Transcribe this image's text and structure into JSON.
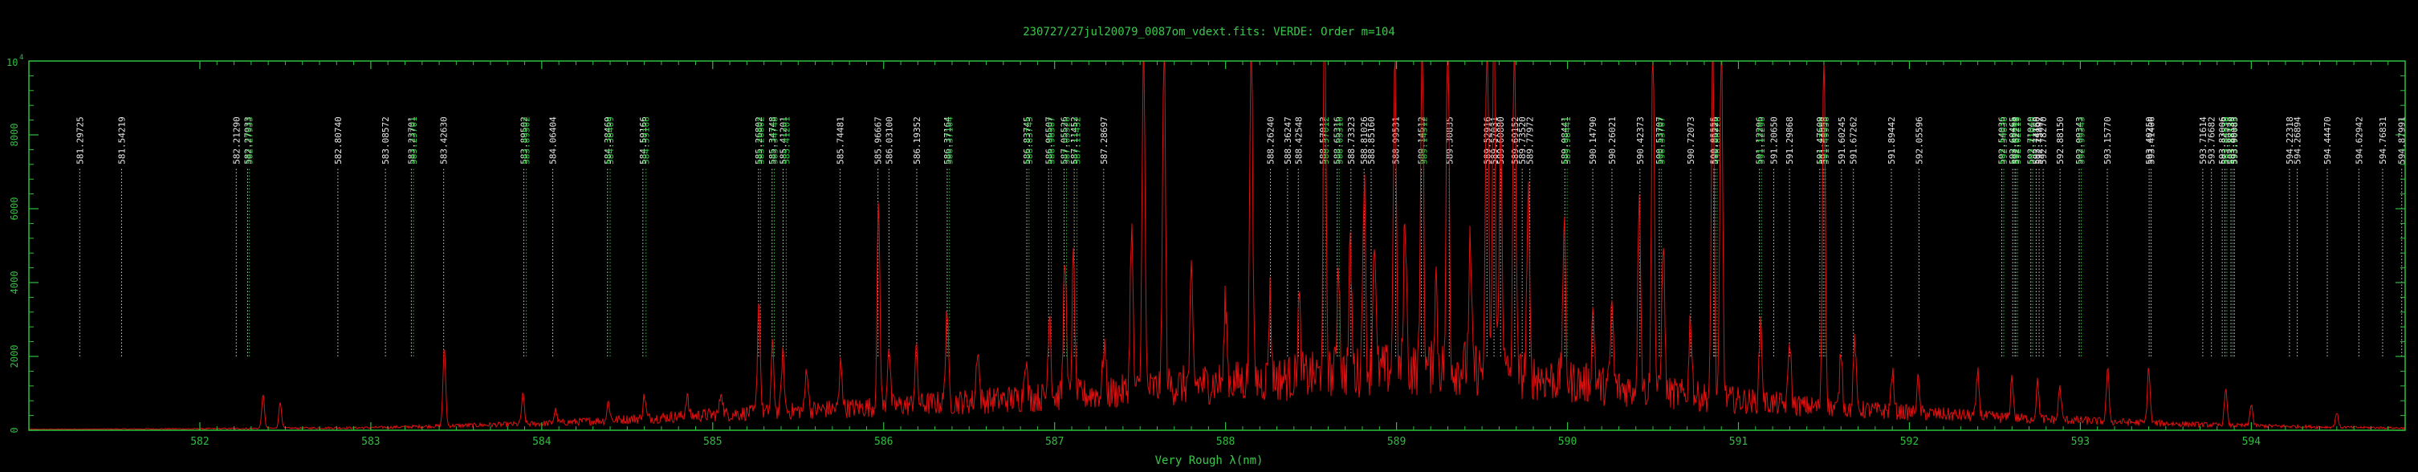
{
  "chart_data": {
    "type": "line",
    "title": "230727/27jul20079_0087om_vdext.fits: VERDE: Order m=104",
    "xlabel": "Very Rough λ(nm)",
    "ylabel": "",
    "xlim": [
      581.0,
      594.9
    ],
    "ylim": [
      0,
      10000
    ],
    "y_exponent_label": "10",
    "y_exponent_power": "4",
    "x_ticks": [
      582,
      583,
      584,
      585,
      586,
      587,
      588,
      589,
      590,
      591,
      592,
      593,
      594
    ],
    "y_ticks": [
      0,
      2000,
      4000,
      6000,
      8000
    ],
    "grid": false,
    "colors": {
      "frame": "#2fbf3f",
      "spectrum": "#e01010",
      "line_white": "#e8e8e8",
      "line_green": "#2fd03f"
    },
    "reference_lines": [
      {
        "label": "581.29725",
        "x": 581.29725,
        "c": "w"
      },
      {
        "label": "581.54219",
        "x": 581.54219,
        "c": "w"
      },
      {
        "label": "582.21290",
        "x": 582.2129,
        "c": "w"
      },
      {
        "label": "582.27933",
        "x": 582.27933,
        "c": "w"
      },
      {
        "label": "582.27933",
        "x": 582.29,
        "c": "g"
      },
      {
        "label": "582.80740",
        "x": 582.8074,
        "c": "w"
      },
      {
        "label": "583.08572",
        "x": 583.08572,
        "c": "w"
      },
      {
        "label": "583.23701",
        "x": 583.23701,
        "c": "w"
      },
      {
        "label": "583.23701",
        "x": 583.25,
        "c": "g"
      },
      {
        "label": "583.42630",
        "x": 583.4263,
        "c": "w"
      },
      {
        "label": "583.89502",
        "x": 583.89502,
        "c": "w"
      },
      {
        "label": "583.89502",
        "x": 583.91,
        "c": "g"
      },
      {
        "label": "584.06404",
        "x": 584.06404,
        "c": "w"
      },
      {
        "label": "584.38469",
        "x": 584.38469,
        "c": "w"
      },
      {
        "label": "584.38469",
        "x": 584.4,
        "c": "g"
      },
      {
        "label": "584.59166",
        "x": 584.59166,
        "c": "w"
      },
      {
        "label": "584.59166",
        "x": 584.61,
        "c": "g"
      },
      {
        "label": "585.26802",
        "x": 585.26802,
        "c": "w"
      },
      {
        "label": "585.26802",
        "x": 585.28,
        "c": "g"
      },
      {
        "label": "585.34748",
        "x": 585.34748,
        "c": "w"
      },
      {
        "label": "585.34748",
        "x": 585.36,
        "c": "g"
      },
      {
        "label": "585.41201",
        "x": 585.41201,
        "c": "w"
      },
      {
        "label": "585.41201",
        "x": 585.43,
        "c": "g"
      },
      {
        "label": "585.74481",
        "x": 585.74481,
        "c": "w"
      },
      {
        "label": "585.96667",
        "x": 585.96667,
        "c": "w"
      },
      {
        "label": "586.03100",
        "x": 586.031,
        "c": "w"
      },
      {
        "label": "586.19352",
        "x": 586.19352,
        "c": "w"
      },
      {
        "label": "586.37164",
        "x": 586.37164,
        "c": "w"
      },
      {
        "label": "586.37164",
        "x": 586.385,
        "c": "g"
      },
      {
        "label": "586.83745",
        "x": 586.83745,
        "c": "w"
      },
      {
        "label": "586.83745",
        "x": 586.85,
        "c": "g"
      },
      {
        "label": "586.96507",
        "x": 586.96507,
        "c": "w"
      },
      {
        "label": "586.96507",
        "x": 586.98,
        "c": "g"
      },
      {
        "label": "587.05526",
        "x": 587.05526,
        "c": "w"
      },
      {
        "label": "587.05526",
        "x": 587.07,
        "c": "g"
      },
      {
        "label": "587.11452",
        "x": 587.11452,
        "c": "w"
      },
      {
        "label": "587.11452",
        "x": 587.13,
        "c": "g"
      },
      {
        "label": "587.28697",
        "x": 587.28697,
        "c": "w"
      },
      {
        "label": "588.26240",
        "x": 588.2624,
        "c": "w"
      },
      {
        "label": "588.36247",
        "x": 588.36247,
        "c": "w"
      },
      {
        "label": "588.42548",
        "x": 588.42548,
        "c": "w"
      },
      {
        "label": "588.57012",
        "x": 588.57012,
        "c": "w"
      },
      {
        "label": "588.57012",
        "x": 588.585,
        "c": "g"
      },
      {
        "label": "588.65316",
        "x": 588.65316,
        "c": "w"
      },
      {
        "label": "588.65316",
        "x": 588.665,
        "c": "g"
      },
      {
        "label": "588.73323",
        "x": 588.73323,
        "c": "w"
      },
      {
        "label": "588.81026",
        "x": 588.81026,
        "c": "w"
      },
      {
        "label": "588.85160",
        "x": 588.8516,
        "c": "w"
      },
      {
        "label": "588.99531",
        "x": 588.99531,
        "c": "w"
      },
      {
        "label": "589.14512",
        "x": 589.14512,
        "c": "w"
      },
      {
        "label": "589.14512",
        "x": 589.16,
        "c": "g"
      },
      {
        "label": "589.30835",
        "x": 589.30835,
        "c": "w"
      },
      {
        "label": "589.52916",
        "x": 589.52916,
        "c": "w"
      },
      {
        "label": "589.57031",
        "x": 589.57031,
        "c": "w"
      },
      {
        "label": "589.60880",
        "x": 589.6088,
        "c": "w"
      },
      {
        "label": "589.69152",
        "x": 589.69152,
        "c": "w"
      },
      {
        "label": "589.73520",
        "x": 589.7352,
        "c": "w"
      },
      {
        "label": "589.77972",
        "x": 589.77972,
        "c": "w"
      },
      {
        "label": "589.98441",
        "x": 589.98441,
        "c": "w"
      },
      {
        "label": "589.98441",
        "x": 589.998,
        "c": "g"
      },
      {
        "label": "590.14790",
        "x": 590.1479,
        "c": "w"
      },
      {
        "label": "590.26021",
        "x": 590.26021,
        "c": "w"
      },
      {
        "label": "590.42373",
        "x": 590.42373,
        "c": "w"
      },
      {
        "label": "590.53707",
        "x": 590.53707,
        "c": "w"
      },
      {
        "label": "590.53707",
        "x": 590.55,
        "c": "g"
      },
      {
        "label": "590.72073",
        "x": 590.72073,
        "c": "w"
      },
      {
        "label": "590.85555",
        "x": 590.85555,
        "c": "w"
      },
      {
        "label": "590.86226",
        "x": 590.86226,
        "c": "w"
      },
      {
        "label": "590.86226",
        "x": 590.875,
        "c": "g"
      },
      {
        "label": "591.12296",
        "x": 591.12296,
        "c": "w"
      },
      {
        "label": "591.12296",
        "x": 591.135,
        "c": "g"
      },
      {
        "label": "591.20650",
        "x": 591.2065,
        "c": "w"
      },
      {
        "label": "591.29868",
        "x": 591.29868,
        "c": "w"
      },
      {
        "label": "591.47609",
        "x": 591.47609,
        "c": "w"
      },
      {
        "label": "591.47609",
        "x": 591.49,
        "c": "g"
      },
      {
        "label": "591.49958",
        "x": 591.49958,
        "c": "w"
      },
      {
        "label": "591.49958",
        "x": 591.51,
        "c": "g"
      },
      {
        "label": "591.60245",
        "x": 591.60245,
        "c": "w"
      },
      {
        "label": "591.67262",
        "x": 591.67262,
        "c": "w"
      },
      {
        "label": "591.89442",
        "x": 591.89442,
        "c": "w"
      },
      {
        "label": "592.05596",
        "x": 592.05596,
        "c": "w"
      },
      {
        "label": "592.54036",
        "x": 592.54036,
        "c": "w"
      },
      {
        "label": "592.54036",
        "x": 592.552,
        "c": "g"
      },
      {
        "label": "592.60465",
        "x": 592.60465,
        "c": "w"
      },
      {
        "label": "592.60465",
        "x": 592.616,
        "c": "g"
      },
      {
        "label": "592.62219",
        "x": 592.62219,
        "c": "w"
      },
      {
        "label": "592.62219",
        "x": 592.633,
        "c": "g"
      },
      {
        "label": "592.71040",
        "x": 592.7104,
        "c": "w"
      },
      {
        "label": "592.71040",
        "x": 592.721,
        "c": "g"
      },
      {
        "label": "592.74160",
        "x": 592.7416,
        "c": "w"
      },
      {
        "label": "592.75892",
        "x": 592.75892,
        "c": "w"
      },
      {
        "label": "592.78270",
        "x": 592.7827,
        "c": "w"
      },
      {
        "label": "592.88150",
        "x": 592.8815,
        "c": "w"
      },
      {
        "label": "592.99343",
        "x": 592.99343,
        "c": "w"
      },
      {
        "label": "592.99343",
        "x": 593.005,
        "c": "g"
      },
      {
        "label": "593.15770",
        "x": 593.1577,
        "c": "w"
      },
      {
        "label": "593.40250",
        "x": 593.4025,
        "c": "w"
      },
      {
        "label": "593.41406",
        "x": 593.41406,
        "c": "w"
      },
      {
        "label": "593.71614",
        "x": 593.71614,
        "c": "w"
      },
      {
        "label": "593.76682",
        "x": 593.76682,
        "c": "w"
      },
      {
        "label": "593.83006",
        "x": 593.83006,
        "c": "w"
      },
      {
        "label": "593.84539",
        "x": 593.84539,
        "c": "w"
      },
      {
        "label": "593.84539",
        "x": 593.857,
        "c": "g"
      },
      {
        "label": "593.88130",
        "x": 593.8813,
        "c": "w"
      },
      {
        "label": "593.88130",
        "x": 593.892,
        "c": "g"
      },
      {
        "label": "593.90083",
        "x": 593.90083,
        "c": "w"
      },
      {
        "label": "594.22318",
        "x": 594.22318,
        "c": "w"
      },
      {
        "label": "594.26894",
        "x": 594.26894,
        "c": "w"
      },
      {
        "label": "594.44470",
        "x": 594.4447,
        "c": "w"
      },
      {
        "label": "594.62942",
        "x": 594.62942,
        "c": "w"
      },
      {
        "label": "594.76831",
        "x": 594.76831,
        "c": "w"
      },
      {
        "label": "594.87991",
        "x": 594.87991,
        "c": "w"
      }
    ],
    "series": [
      {
        "color": "#e01010",
        "baseline": [
          [
            581.0,
            25
          ],
          [
            582.0,
            40
          ],
          [
            583.0,
            70
          ],
          [
            584.0,
            180
          ],
          [
            585.0,
            420
          ],
          [
            585.8,
            600
          ],
          [
            586.5,
            780
          ],
          [
            587.3,
            1000
          ],
          [
            587.8,
            1250
          ],
          [
            588.2,
            1350
          ],
          [
            588.7,
            1550
          ],
          [
            589.0,
            1650
          ],
          [
            589.4,
            1700
          ],
          [
            589.8,
            1450
          ],
          [
            590.3,
            1150
          ],
          [
            590.8,
            900
          ],
          [
            591.4,
            650
          ],
          [
            592.0,
            480
          ],
          [
            592.6,
            330
          ],
          [
            593.2,
            230
          ],
          [
            593.8,
            140
          ],
          [
            594.4,
            90
          ],
          [
            594.9,
            60
          ]
        ],
        "peaks": [
          [
            582.37,
            900
          ],
          [
            582.47,
            700
          ],
          [
            583.43,
            2100
          ],
          [
            583.89,
            800
          ],
          [
            584.08,
            350
          ],
          [
            584.39,
            500
          ],
          [
            584.6,
            600
          ],
          [
            584.85,
            550
          ],
          [
            585.05,
            650
          ],
          [
            585.27,
            3100
          ],
          [
            585.35,
            1800
          ],
          [
            585.41,
            1600
          ],
          [
            585.55,
            1200
          ],
          [
            585.75,
            1300
          ],
          [
            585.97,
            5500
          ],
          [
            586.03,
            1700
          ],
          [
            586.19,
            1500
          ],
          [
            586.37,
            2600
          ],
          [
            586.55,
            1500
          ],
          [
            586.83,
            1200
          ],
          [
            586.97,
            2400
          ],
          [
            587.06,
            4000
          ],
          [
            587.11,
            3700
          ],
          [
            587.29,
            1400
          ],
          [
            587.45,
            4500
          ],
          [
            587.52,
            10000
          ],
          [
            587.64,
            10000
          ],
          [
            587.8,
            2800
          ],
          [
            588.0,
            2200
          ],
          [
            588.15,
            10000
          ],
          [
            588.26,
            2300
          ],
          [
            588.43,
            2000
          ],
          [
            588.58,
            10000
          ],
          [
            588.66,
            3200
          ],
          [
            588.73,
            3400
          ],
          [
            588.81,
            5400
          ],
          [
            588.87,
            3800
          ],
          [
            588.99,
            9000
          ],
          [
            589.05,
            4200
          ],
          [
            589.15,
            10000
          ],
          [
            589.23,
            2500
          ],
          [
            589.3,
            10000
          ],
          [
            589.43,
            3200
          ],
          [
            589.53,
            10000
          ],
          [
            589.57,
            10000
          ],
          [
            589.61,
            7000
          ],
          [
            589.69,
            10000
          ],
          [
            589.77,
            4800
          ],
          [
            589.98,
            4200
          ],
          [
            590.15,
            2000
          ],
          [
            590.26,
            2300
          ],
          [
            590.42,
            5600
          ],
          [
            590.5,
            10000
          ],
          [
            590.56,
            4300
          ],
          [
            590.72,
            2200
          ],
          [
            590.85,
            10000
          ],
          [
            590.9,
            10000
          ],
          [
            591.13,
            2200
          ],
          [
            591.3,
            1800
          ],
          [
            591.5,
            10000
          ],
          [
            591.6,
            1600
          ],
          [
            591.68,
            1900
          ],
          [
            591.9,
            1100
          ],
          [
            592.05,
            900
          ],
          [
            592.4,
            1200
          ],
          [
            592.6,
            1100
          ],
          [
            592.75,
            1000
          ],
          [
            592.88,
            900
          ],
          [
            593.16,
            1400
          ],
          [
            593.4,
            1500
          ],
          [
            593.85,
            1000
          ],
          [
            594.0,
            600
          ],
          [
            594.5,
            400
          ]
        ]
      }
    ]
  }
}
